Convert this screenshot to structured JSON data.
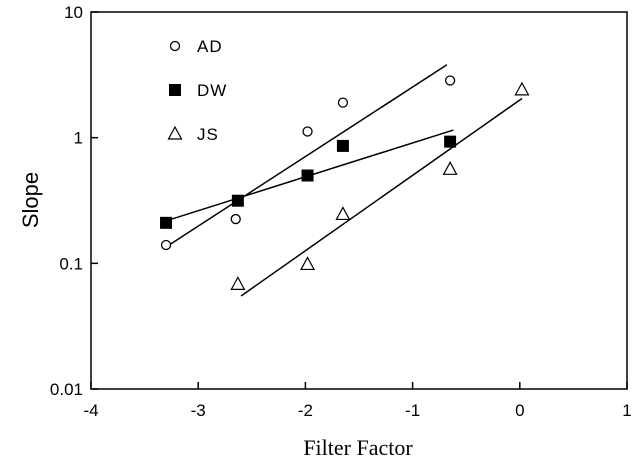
{
  "chart_data": {
    "type": "scatter",
    "xlabel": "Filter Factor",
    "ylabel": "Slope",
    "xlim": [
      -4,
      1
    ],
    "ylim": [
      0.01,
      10
    ],
    "yscale": "log",
    "grid": false,
    "legend_position": "top-left",
    "x_ticks": [
      -4,
      -3,
      -2,
      -1,
      0,
      1
    ],
    "x_tick_labels": [
      "-4",
      "-3",
      "-2",
      "-1",
      "0",
      "1"
    ],
    "y_ticks": [
      0.01,
      0.1,
      1,
      10
    ],
    "y_tick_labels": [
      "0.01",
      "0.1",
      "1",
      "10"
    ],
    "series": [
      {
        "name": "AD",
        "marker": "circle-open",
        "x": [
          -3.3,
          -2.65,
          -1.98,
          -1.65,
          -0.65
        ],
        "y": [
          0.14,
          0.225,
          1.12,
          1.9,
          2.85
        ],
        "fit": {
          "x": [
            -3.3,
            -0.68
          ],
          "y": [
            0.135,
            3.8
          ]
        }
      },
      {
        "name": "DW",
        "marker": "square-filled",
        "x": [
          -3.3,
          -2.63,
          -1.98,
          -1.65,
          -0.65
        ],
        "y": [
          0.21,
          0.315,
          0.5,
          0.86,
          0.93
        ],
        "fit": {
          "x": [
            -3.32,
            -0.62
          ],
          "y": [
            0.215,
            1.15
          ]
        }
      },
      {
        "name": "JS",
        "marker": "triangle-open",
        "x": [
          -2.63,
          -1.98,
          -1.65,
          -0.65,
          0.02
        ],
        "y": [
          0.068,
          0.098,
          0.245,
          0.56,
          2.4
        ],
        "fit": {
          "x": [
            -2.6,
            0.02
          ],
          "y": [
            0.055,
            2.05
          ]
        }
      }
    ]
  }
}
